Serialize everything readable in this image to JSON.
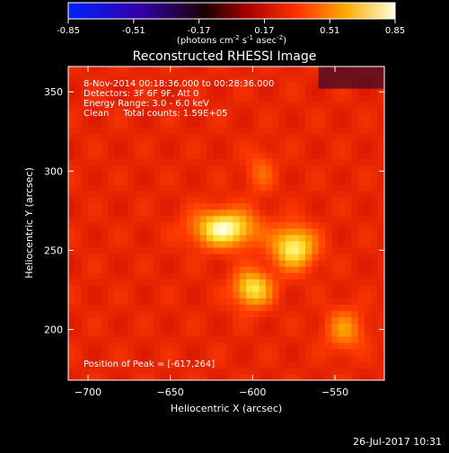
{
  "chart_data": {
    "type": "heatmap",
    "title": "Reconstructed RHESSI Image",
    "xlabel": "Heliocentric X (arcsec)",
    "ylabel": "Heliocentric Y (arcsec)",
    "xlim": [
      -712,
      -520
    ],
    "ylim": [
      168,
      366
    ],
    "xticks": [
      -700,
      -650,
      -600,
      -550
    ],
    "yticks": [
      200,
      250,
      300,
      350
    ],
    "colorbar": {
      "min": -0.85,
      "max": 0.85,
      "ticks": [
        "-0.85",
        "-0.51",
        "-0.17",
        "0.17",
        "0.51",
        "0.85"
      ],
      "unit_prefix": "(photons cm",
      "unit_sup1": "-2",
      "unit_mid": " s",
      "unit_sup2": "-1",
      "unit_mid2": " asec",
      "unit_sup3": "-2",
      "unit_suffix": ")",
      "colormap": "hot-with-blue-negatives"
    },
    "annotations": [
      "8-Nov-2014 00:18:36.000 to 00:28:36.000",
      "Detectors: 3F 6F 9F, Att 0",
      "Energy Range: 3.0 - 6.0 keV",
      "Clean     Total counts: 1.59E+05",
      "Position of Peak = [-617,264]"
    ],
    "sources": [
      {
        "x": -617,
        "y": 264,
        "sx": 13,
        "sy": 8,
        "peak": 0.85
      },
      {
        "x": -575,
        "y": 252,
        "sx": 9,
        "sy": 9,
        "peak": 0.8
      },
      {
        "x": -600,
        "y": 226,
        "sx": 8,
        "sy": 8,
        "peak": 0.75
      },
      {
        "x": -595,
        "y": 300,
        "sx": 6,
        "sy": 9,
        "peak": 0.45
      },
      {
        "x": -544,
        "y": 200,
        "sx": 8,
        "sy": 9,
        "peak": 0.55
      }
    ]
  },
  "footer": {
    "timestamp": "26-Jul-2017 10:31"
  }
}
